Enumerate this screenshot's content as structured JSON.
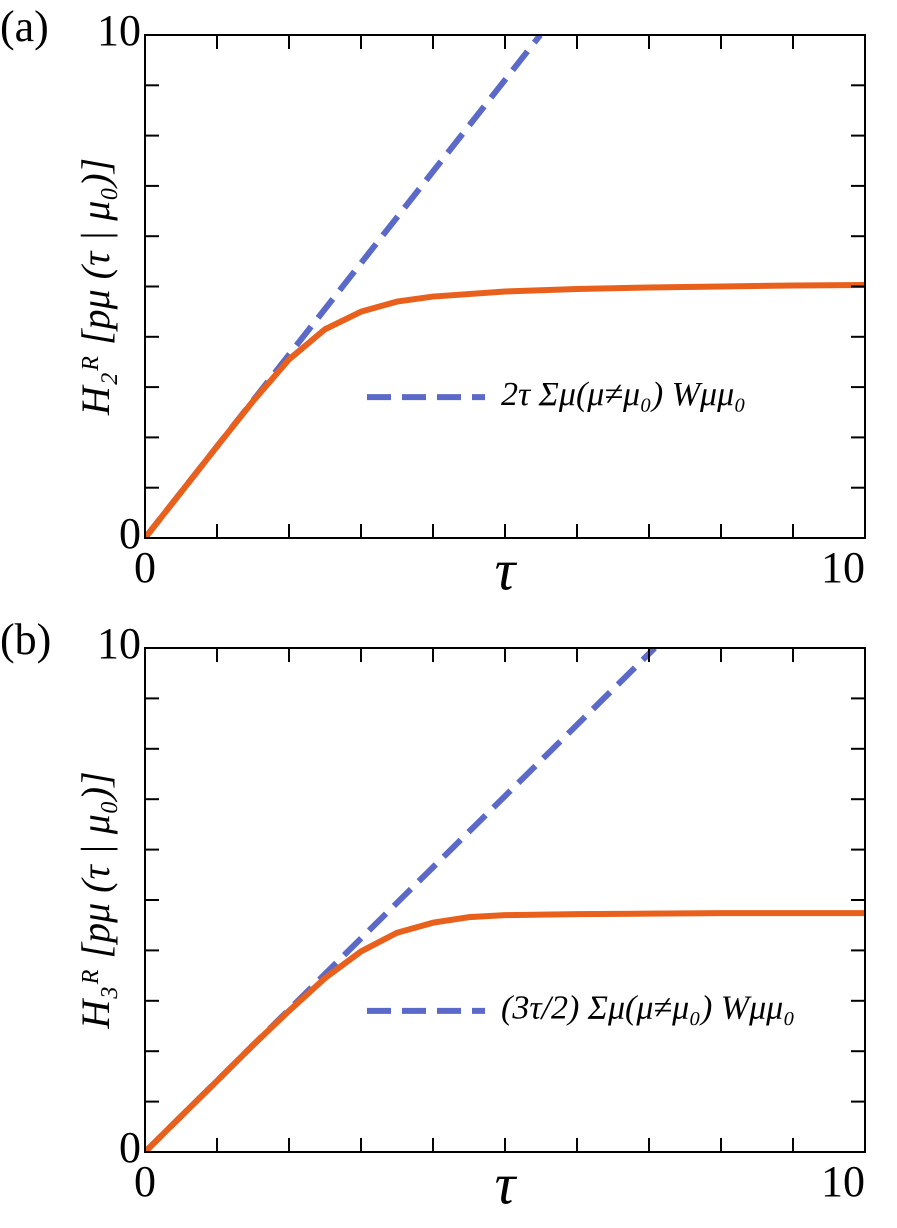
{
  "chart_data": [
    {
      "type": "line",
      "panel_label": "(a)",
      "xlabel": "τ",
      "ylabel": "H₂ᴿ [pμ (τ | μ₀)]",
      "xlim": [
        0,
        10
      ],
      "ylim": [
        0,
        10
      ],
      "xticks": [
        0,
        10
      ],
      "yticks": [
        0,
        10
      ],
      "xminorticks": [
        1,
        2,
        3,
        4,
        5,
        6,
        7,
        8,
        9
      ],
      "yminorticks": [
        1,
        2,
        3,
        4,
        5,
        6,
        7,
        8,
        9
      ],
      "legend": "center right",
      "series": [
        {
          "name": "2τ Σμ(μ≠μ₀) Wμμ₀",
          "color": "#5b6ac8",
          "dashed": true,
          "x": [
            0,
            5.49
          ],
          "values": [
            0,
            10
          ]
        },
        {
          "color": "#e8601c",
          "dashed": false,
          "x": [
            0,
            0.5,
            1,
            1.5,
            2,
            2.5,
            3,
            3.5,
            4,
            5,
            6,
            7,
            8,
            9,
            10
          ],
          "values": [
            0,
            0.91,
            1.82,
            2.72,
            3.55,
            4.15,
            4.5,
            4.7,
            4.8,
            4.9,
            4.95,
            4.98,
            5.0,
            5.02,
            5.03
          ]
        }
      ]
    },
    {
      "type": "line",
      "panel_label": "(b)",
      "xlabel": "τ",
      "ylabel": "H₃ᴿ [pμ (τ | μ₀)]",
      "xlim": [
        0,
        10
      ],
      "ylim": [
        0,
        10
      ],
      "xticks": [
        0,
        10
      ],
      "yticks": [
        0,
        10
      ],
      "xminorticks": [
        1,
        2,
        3,
        4,
        5,
        6,
        7,
        8,
        9
      ],
      "yminorticks": [
        1,
        2,
        3,
        4,
        5,
        6,
        7,
        8,
        9
      ],
      "legend": "center right",
      "series": [
        {
          "name": "(3τ/2) Σμ(μ≠μ₀) Wμμ₀",
          "color": "#5b6ac8",
          "dashed": true,
          "x": [
            0,
            7.08
          ],
          "values": [
            0,
            10
          ]
        },
        {
          "color": "#e8601c",
          "dashed": false,
          "x": [
            0,
            0.5,
            1,
            1.5,
            2,
            2.5,
            3,
            3.5,
            4,
            4.5,
            5,
            6,
            7,
            8,
            9,
            10
          ],
          "values": [
            0,
            0.71,
            1.41,
            2.12,
            2.8,
            3.45,
            3.98,
            4.35,
            4.55,
            4.66,
            4.7,
            4.72,
            4.73,
            4.74,
            4.74,
            4.74
          ]
        }
      ]
    }
  ]
}
